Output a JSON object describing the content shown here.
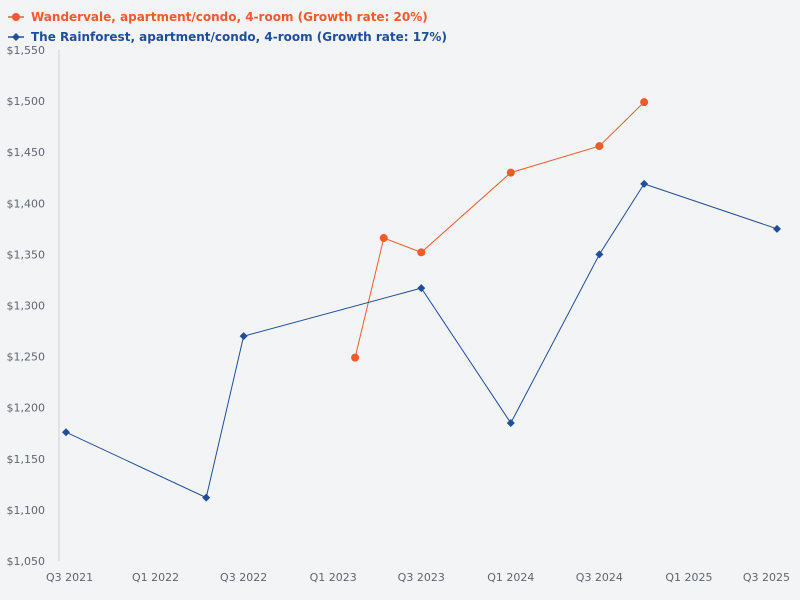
{
  "chart_data": {
    "type": "line",
    "title": "",
    "xlabel": "",
    "ylabel": "",
    "x_ticks": [
      "Q3 2021",
      "Q1 2022",
      "Q3 2022",
      "Q1 2023",
      "Q3 2023",
      "Q1 2024",
      "Q3 2024",
      "Q1 2025",
      "Q3 2025"
    ],
    "x_tick_dates": [
      "2021-07-01",
      "2022-01-01",
      "2022-07-01",
      "2023-01-01",
      "2023-07-01",
      "2024-01-01",
      "2024-07-01",
      "2025-01-01",
      "2025-07-01"
    ],
    "y_ticks": [
      "$1,550",
      "$1,500",
      "$1,450",
      "$1,400",
      "$1,350",
      "$1,300",
      "$1,250",
      "$1,200",
      "$1,150",
      "$1,100",
      "$1,050"
    ],
    "y_tick_values": [
      1550,
      1500,
      1450,
      1400,
      1350,
      1300,
      1250,
      1200,
      1150,
      1100,
      1050
    ],
    "xlim": [
      "2021-07-01",
      "2025-07-01"
    ],
    "ylim": [
      1050,
      1550
    ],
    "grid": false,
    "legend_position": "top-left",
    "series": [
      {
        "name": "Wandervale, apartment/condo, 4-room (Growth rate: 20%)",
        "color": "#f15a2b",
        "marker": "circle",
        "points": [
          {
            "x": "2023-02-15",
            "y": 1249
          },
          {
            "x": "2023-04-15",
            "y": 1366
          },
          {
            "x": "2023-07-01",
            "y": 1352
          },
          {
            "x": "2024-01-01",
            "y": 1430
          },
          {
            "x": "2024-07-01",
            "y": 1456
          },
          {
            "x": "2024-10-01",
            "y": 1499
          }
        ]
      },
      {
        "name": "The Rainforest, apartment/condo, 4-room (Growth rate: 17%)",
        "color": "#1f4e9b",
        "marker": "diamond",
        "points": [
          {
            "x": "2021-07-01",
            "y": 1176
          },
          {
            "x": "2022-04-15",
            "y": 1112
          },
          {
            "x": "2022-07-01",
            "y": 1270
          },
          {
            "x": "2023-07-01",
            "y": 1317
          },
          {
            "x": "2024-01-01",
            "y": 1185
          },
          {
            "x": "2024-07-01",
            "y": 1350
          },
          {
            "x": "2024-10-01",
            "y": 1419
          },
          {
            "x": "2025-07-01",
            "y": 1375
          }
        ]
      }
    ]
  }
}
